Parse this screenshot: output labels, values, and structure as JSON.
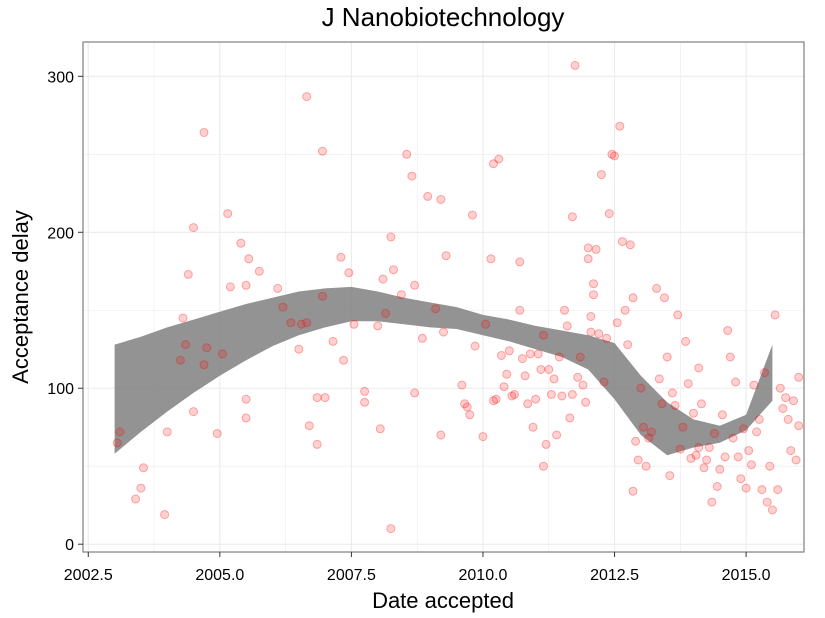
{
  "chart_data": {
    "type": "scatter",
    "title": "J Nanobiotechnology",
    "xlabel": "Date accepted",
    "ylabel": "Acceptance delay",
    "xlim": [
      2002.4,
      2016.1
    ],
    "ylim": [
      -5,
      322
    ],
    "x_ticks": [
      2002.5,
      2005.0,
      2007.5,
      2010.0,
      2012.5,
      2015.0
    ],
    "x_tick_labels": [
      "2002.5",
      "2005.0",
      "2007.5",
      "2010.0",
      "2012.5",
      "2015.0"
    ],
    "y_ticks": [
      0,
      100,
      200,
      300
    ],
    "y_tick_labels": [
      "0",
      "100",
      "200",
      "300"
    ],
    "grid": true,
    "legend": "none",
    "colors": {
      "points": "#ff0000",
      "band": "#808080",
      "grid": "#ebebeb",
      "panel_border": "#7f7f7f"
    },
    "points": [
      [
        2003.05,
        65
      ],
      [
        2003.1,
        72
      ],
      [
        2003.4,
        29
      ],
      [
        2003.5,
        36
      ],
      [
        2003.55,
        49
      ],
      [
        2003.95,
        19
      ],
      [
        2004.0,
        72
      ],
      [
        2004.25,
        118
      ],
      [
        2004.3,
        145
      ],
      [
        2004.35,
        128
      ],
      [
        2004.4,
        173
      ],
      [
        2004.5,
        85
      ],
      [
        2004.5,
        203
      ],
      [
        2004.7,
        264
      ],
      [
        2004.75,
        126
      ],
      [
        2004.7,
        115
      ],
      [
        2004.95,
        71
      ],
      [
        2005.05,
        122
      ],
      [
        2005.15,
        212
      ],
      [
        2005.2,
        165
      ],
      [
        2005.4,
        193
      ],
      [
        2005.5,
        93
      ],
      [
        2005.5,
        81
      ],
      [
        2005.5,
        166
      ],
      [
        2005.55,
        183
      ],
      [
        2005.75,
        175
      ],
      [
        2006.1,
        164
      ],
      [
        2006.2,
        152
      ],
      [
        2006.35,
        142
      ],
      [
        2006.5,
        125
      ],
      [
        2006.55,
        141
      ],
      [
        2006.65,
        142
      ],
      [
        2006.65,
        287
      ],
      [
        2006.7,
        76
      ],
      [
        2006.85,
        64
      ],
      [
        2006.85,
        94
      ],
      [
        2006.95,
        159
      ],
      [
        2006.95,
        252
      ],
      [
        2007.0,
        94
      ],
      [
        2007.15,
        130
      ],
      [
        2007.3,
        184
      ],
      [
        2007.35,
        118
      ],
      [
        2007.45,
        174
      ],
      [
        2007.55,
        141
      ],
      [
        2007.75,
        91
      ],
      [
        2007.75,
        98
      ],
      [
        2008.0,
        140
      ],
      [
        2008.05,
        74
      ],
      [
        2008.1,
        170
      ],
      [
        2008.15,
        148
      ],
      [
        2008.25,
        10
      ],
      [
        2008.25,
        197
      ],
      [
        2008.3,
        176
      ],
      [
        2008.45,
        160
      ],
      [
        2008.55,
        250
      ],
      [
        2008.65,
        236
      ],
      [
        2008.7,
        97
      ],
      [
        2008.7,
        166
      ],
      [
        2008.85,
        132
      ],
      [
        2008.95,
        223
      ],
      [
        2009.1,
        151
      ],
      [
        2009.2,
        70
      ],
      [
        2009.2,
        221
      ],
      [
        2009.25,
        136
      ],
      [
        2009.3,
        185
      ],
      [
        2009.6,
        102
      ],
      [
        2009.65,
        90
      ],
      [
        2009.7,
        88
      ],
      [
        2009.75,
        83
      ],
      [
        2009.8,
        211
      ],
      [
        2009.85,
        127
      ],
      [
        2010.0,
        69
      ],
      [
        2010.05,
        141
      ],
      [
        2010.15,
        183
      ],
      [
        2010.2,
        244
      ],
      [
        2010.2,
        92
      ],
      [
        2010.25,
        93
      ],
      [
        2010.3,
        247
      ],
      [
        2010.35,
        121
      ],
      [
        2010.4,
        101
      ],
      [
        2010.45,
        109
      ],
      [
        2010.5,
        124
      ],
      [
        2010.55,
        95
      ],
      [
        2010.6,
        96
      ],
      [
        2010.7,
        181
      ],
      [
        2010.7,
        150
      ],
      [
        2010.75,
        119
      ],
      [
        2010.8,
        108
      ],
      [
        2010.85,
        90
      ],
      [
        2010.9,
        122
      ],
      [
        2010.95,
        75
      ],
      [
        2011.0,
        93
      ],
      [
        2011.05,
        122
      ],
      [
        2011.1,
        112
      ],
      [
        2011.15,
        134
      ],
      [
        2011.15,
        50
      ],
      [
        2011.2,
        64
      ],
      [
        2011.25,
        112
      ],
      [
        2011.3,
        96
      ],
      [
        2011.35,
        106
      ],
      [
        2011.4,
        70
      ],
      [
        2011.45,
        120
      ],
      [
        2011.5,
        95
      ],
      [
        2011.55,
        150
      ],
      [
        2011.6,
        140
      ],
      [
        2011.65,
        81
      ],
      [
        2011.7,
        96
      ],
      [
        2011.7,
        210
      ],
      [
        2011.75,
        307
      ],
      [
        2011.8,
        107
      ],
      [
        2011.85,
        120
      ],
      [
        2011.9,
        102
      ],
      [
        2011.95,
        91
      ],
      [
        2012.0,
        190
      ],
      [
        2012.0,
        183
      ],
      [
        2012.05,
        146
      ],
      [
        2012.05,
        136
      ],
      [
        2012.1,
        160
      ],
      [
        2012.1,
        167
      ],
      [
        2012.15,
        189
      ],
      [
        2012.2,
        135
      ],
      [
        2012.25,
        237
      ],
      [
        2012.3,
        104
      ],
      [
        2012.35,
        132
      ],
      [
        2012.4,
        212
      ],
      [
        2012.45,
        250
      ],
      [
        2012.5,
        249
      ],
      [
        2012.55,
        142
      ],
      [
        2012.6,
        268
      ],
      [
        2012.65,
        194
      ],
      [
        2012.7,
        150
      ],
      [
        2012.75,
        128
      ],
      [
        2012.8,
        192
      ],
      [
        2012.85,
        158
      ],
      [
        2012.85,
        34
      ],
      [
        2012.9,
        66
      ],
      [
        2012.95,
        54
      ],
      [
        2013.0,
        100
      ],
      [
        2013.05,
        75
      ],
      [
        2013.1,
        50
      ],
      [
        2013.15,
        68
      ],
      [
        2013.2,
        72
      ],
      [
        2013.3,
        164
      ],
      [
        2013.35,
        106
      ],
      [
        2013.4,
        90
      ],
      [
        2013.45,
        158
      ],
      [
        2013.5,
        120
      ],
      [
        2013.55,
        44
      ],
      [
        2013.6,
        97
      ],
      [
        2013.65,
        89
      ],
      [
        2013.7,
        147
      ],
      [
        2013.75,
        61
      ],
      [
        2013.8,
        75
      ],
      [
        2013.85,
        130
      ],
      [
        2013.9,
        103
      ],
      [
        2013.95,
        55
      ],
      [
        2014.0,
        84
      ],
      [
        2014.05,
        57
      ],
      [
        2014.1,
        62
      ],
      [
        2014.1,
        113
      ],
      [
        2014.15,
        90
      ],
      [
        2014.2,
        49
      ],
      [
        2014.25,
        54
      ],
      [
        2014.3,
        62
      ],
      [
        2014.35,
        27
      ],
      [
        2014.4,
        71
      ],
      [
        2014.45,
        37
      ],
      [
        2014.5,
        48
      ],
      [
        2014.55,
        83
      ],
      [
        2014.6,
        56
      ],
      [
        2014.65,
        137
      ],
      [
        2014.7,
        120
      ],
      [
        2014.75,
        68
      ],
      [
        2014.8,
        104
      ],
      [
        2014.85,
        56
      ],
      [
        2014.9,
        42
      ],
      [
        2014.95,
        74
      ],
      [
        2015.0,
        36
      ],
      [
        2015.05,
        60
      ],
      [
        2015.1,
        51
      ],
      [
        2015.15,
        102
      ],
      [
        2015.2,
        72
      ],
      [
        2015.25,
        80
      ],
      [
        2015.3,
        35
      ],
      [
        2015.35,
        110
      ],
      [
        2015.4,
        27
      ],
      [
        2015.45,
        50
      ],
      [
        2015.5,
        22
      ],
      [
        2015.55,
        147
      ],
      [
        2015.6,
        35
      ],
      [
        2015.65,
        100
      ],
      [
        2015.7,
        87
      ],
      [
        2015.75,
        94
      ],
      [
        2015.8,
        80
      ],
      [
        2015.85,
        60
      ],
      [
        2015.9,
        92
      ],
      [
        2015.95,
        54
      ],
      [
        2016.0,
        107
      ],
      [
        2016.0,
        76
      ]
    ],
    "band": {
      "x": [
        2003.0,
        2003.5,
        2004.0,
        2004.5,
        2005.0,
        2005.5,
        2006.0,
        2006.5,
        2007.0,
        2007.5,
        2008.0,
        2008.5,
        2009.0,
        2009.5,
        2010.0,
        2010.5,
        2011.0,
        2011.5,
        2012.0,
        2012.5,
        2013.0,
        2013.5,
        2014.0,
        2014.5,
        2015.0,
        2015.5
      ],
      "upper": [
        128,
        133,
        139,
        144,
        149,
        154,
        158,
        162,
        164,
        165,
        162,
        158,
        155,
        152,
        147,
        144,
        140,
        137,
        134,
        129,
        108,
        91,
        80,
        76,
        83,
        128
      ],
      "lower": [
        58,
        72,
        85,
        97,
        108,
        118,
        127,
        134,
        139,
        143,
        143,
        141,
        139,
        138,
        134,
        130,
        125,
        120,
        112,
        93,
        70,
        57,
        62,
        65,
        73,
        92
      ]
    }
  }
}
